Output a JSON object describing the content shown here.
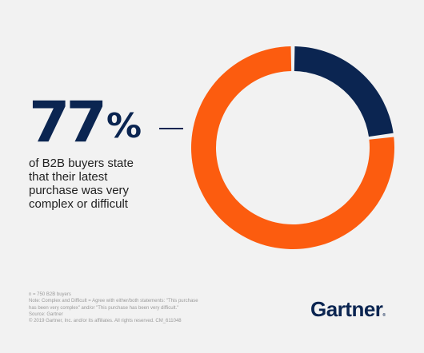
{
  "headline": {
    "number": "77",
    "percent_sign": "%",
    "caption": "of B2B buyers state\nthat their latest\npurchase was very\ncomplex or difficult"
  },
  "chart_data": {
    "type": "pie",
    "donut": true,
    "title": "",
    "slices": [
      {
        "label": "",
        "value": 77,
        "color": "#fc5c0f"
      },
      {
        "label": "",
        "value": 23,
        "color": "#0b2551"
      }
    ]
  },
  "footnotes": [
    "n = 750 B2B buyers",
    "Note: Complex and Difficult = Agree with either/both statements: \"This purchase",
    "has been very complex\" and/or \"This purchase has been very difficult.\"",
    "Source: Gartner",
    "© 2019 Gartner, Inc. and/or its affiliates. All rights reserved. CM_611048"
  ],
  "brand": {
    "name": "Gartner",
    "trademark": "®"
  },
  "colors": {
    "background": "#f2f2f2",
    "navy": "#0b2551",
    "orange": "#fc5c0f"
  }
}
